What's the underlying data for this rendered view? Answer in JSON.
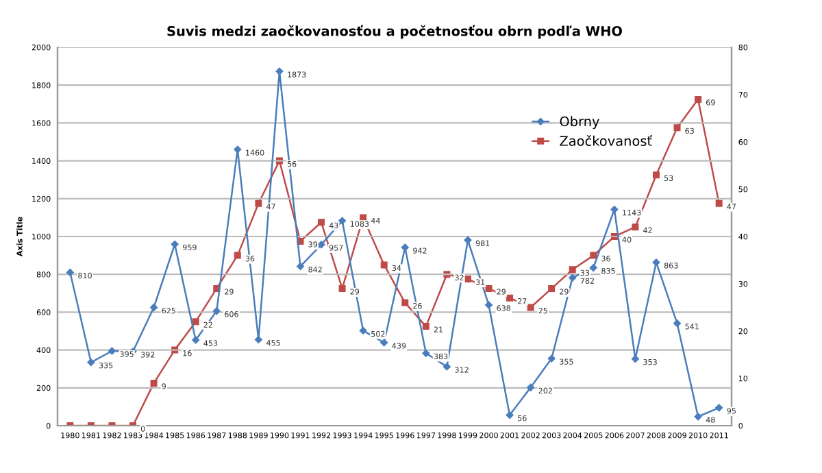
{
  "chart_data": {
    "type": "line",
    "title": "Suvis medzi zaočkovanosťou a početnosťou obrn podľa WHO",
    "ylabel": "Axis Title",
    "categories": [
      "1980",
      "1981",
      "1982",
      "1983",
      "1984",
      "1985",
      "1986",
      "1987",
      "1988",
      "1989",
      "1990",
      "1991",
      "1992",
      "1993",
      "1994",
      "1995",
      "1996",
      "1997",
      "1998",
      "1999",
      "2000",
      "2001",
      "2002",
      "2003",
      "2004",
      "2005",
      "2006",
      "2007",
      "2008",
      "2009",
      "2010",
      "2011"
    ],
    "series": [
      {
        "name": "Obrny",
        "color": "#4a7ebb",
        "marker": "diamond",
        "data_labels": true,
        "values": [
          810,
          335,
          395,
          392,
          625,
          959,
          453,
          606,
          1460,
          455,
          1873,
          842,
          957,
          1083,
          502,
          439,
          942,
          383,
          312,
          981,
          638,
          56,
          202,
          355,
          782,
          835,
          1143,
          353,
          863,
          541,
          48,
          95
        ]
      },
      {
        "name": "Zaočkovanosť",
        "color": "#be4b48",
        "marker": "square",
        "axis": "y2",
        "values": [
          0,
          0,
          0,
          0,
          9,
          16,
          22,
          29,
          36,
          47,
          56,
          39,
          43,
          29,
          44,
          34,
          26,
          21,
          32,
          31,
          29,
          27,
          25,
          29,
          33,
          36,
          40,
          42,
          53,
          63,
          69,
          47
        ],
        "value_labels": [
          null,
          null,
          null,
          "0",
          "9",
          "16",
          "22",
          "29",
          "36",
          "47",
          "56",
          "39",
          "43",
          "29",
          "44",
          "34",
          "26",
          "21",
          "32",
          "31",
          "29",
          "27",
          "25",
          "29",
          "33",
          "36",
          "40",
          "42",
          "53",
          "63",
          "69",
          "47"
        ]
      }
    ],
    "ylim": [
      0,
      2000
    ],
    "yticks": [
      0,
      200,
      400,
      600,
      800,
      1000,
      1200,
      1400,
      1600,
      1800,
      2000
    ],
    "y2lim": [
      0,
      80
    ],
    "y2ticks": [
      0,
      10,
      20,
      30,
      40,
      50,
      60,
      70,
      80
    ],
    "grid": "y",
    "legend": "top right",
    "line_style": "solid"
  }
}
